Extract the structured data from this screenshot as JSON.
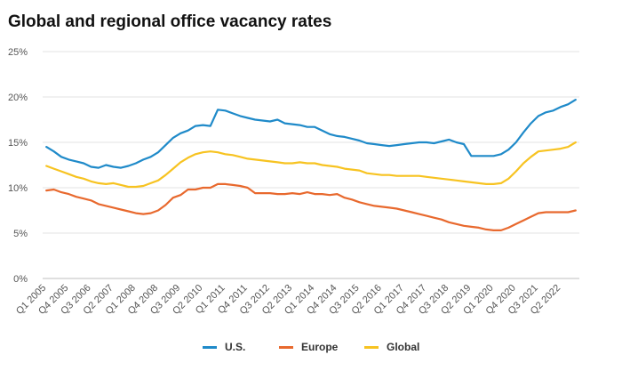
{
  "chart_data": {
    "type": "line",
    "title": "Global and regional office vacancy rates",
    "xlabel": "",
    "ylabel": "",
    "ylim": [
      0,
      25
    ],
    "yticks": [
      "0%",
      "5%",
      "10%",
      "15%",
      "20%",
      "25%"
    ],
    "grid": true,
    "legend_position": "bottom",
    "x": [
      "Q1 2005",
      "Q2 2005",
      "Q3 2005",
      "Q4 2005",
      "Q1 2006",
      "Q2 2006",
      "Q3 2006",
      "Q4 2006",
      "Q1 2007",
      "Q2 2007",
      "Q3 2007",
      "Q4 2007",
      "Q1 2008",
      "Q2 2008",
      "Q3 2008",
      "Q4 2008",
      "Q1 2009",
      "Q2 2009",
      "Q3 2009",
      "Q4 2009",
      "Q1 2010",
      "Q2 2010",
      "Q3 2010",
      "Q4 2010",
      "Q1 2011",
      "Q2 2011",
      "Q3 2011",
      "Q4 2011",
      "Q1 2012",
      "Q2 2012",
      "Q3 2012",
      "Q4 2012",
      "Q1 2013",
      "Q2 2013",
      "Q3 2013",
      "Q4 2013",
      "Q1 2014",
      "Q2 2014",
      "Q3 2014",
      "Q4 2014",
      "Q1 2015",
      "Q2 2015",
      "Q3 2015",
      "Q4 2015",
      "Q1 2016",
      "Q2 2016",
      "Q3 2016",
      "Q4 2016",
      "Q1 2017",
      "Q2 2017",
      "Q3 2017",
      "Q4 2017",
      "Q1 2018",
      "Q2 2018",
      "Q3 2018",
      "Q4 2018",
      "Q1 2019",
      "Q2 2019",
      "Q3 2019",
      "Q4 2019",
      "Q1 2020",
      "Q2 2020",
      "Q3 2020",
      "Q4 2020",
      "Q1 2021",
      "Q2 2021",
      "Q3 2021",
      "Q4 2021",
      "Q1 2022",
      "Q2 2022",
      "Q3 2022",
      "Q4 2022"
    ],
    "xtick_labels": [
      "Q1 2005",
      "Q4 2005",
      "Q3 2006",
      "Q2 2007",
      "Q1 2008",
      "Q4 2008",
      "Q3 2009",
      "Q2 2010",
      "Q1 2011",
      "Q4 2011",
      "Q3 2012",
      "Q2 2013",
      "Q1 2014",
      "Q4 2014",
      "Q3 2015",
      "Q2 2016",
      "Q1 2017",
      "Q4 2017",
      "Q3 2018",
      "Q2 2019",
      "Q1 2020",
      "Q4 2020",
      "Q3 2021",
      "Q2 2022"
    ],
    "series": [
      {
        "name": "U.S.",
        "color": "#1f8ac9",
        "values": [
          14.5,
          14.0,
          13.4,
          13.1,
          12.9,
          12.7,
          12.3,
          12.2,
          12.5,
          12.3,
          12.2,
          12.4,
          12.7,
          13.1,
          13.4,
          13.9,
          14.7,
          15.5,
          16.0,
          16.3,
          16.8,
          16.9,
          16.8,
          18.6,
          18.5,
          18.2,
          17.9,
          17.7,
          17.5,
          17.4,
          17.3,
          17.5,
          17.1,
          17.0,
          16.9,
          16.7,
          16.7,
          16.3,
          15.9,
          15.7,
          15.6,
          15.4,
          15.2,
          14.9,
          14.8,
          14.7,
          14.6,
          14.7,
          14.8,
          14.9,
          15.0,
          15.0,
          14.9,
          15.1,
          15.3,
          15.0,
          14.8,
          13.5,
          13.5,
          13.5,
          13.5,
          13.7,
          14.2,
          15.0,
          16.1,
          17.1,
          17.9,
          18.3,
          18.5,
          18.9,
          19.2,
          19.7
        ]
      },
      {
        "name": "Europe",
        "color": "#e8692e",
        "values": [
          9.7,
          9.8,
          9.5,
          9.3,
          9.0,
          8.8,
          8.6,
          8.2,
          8.0,
          7.8,
          7.6,
          7.4,
          7.2,
          7.1,
          7.2,
          7.5,
          8.1,
          8.9,
          9.2,
          9.8,
          9.8,
          10.0,
          10.0,
          10.4,
          10.4,
          10.3,
          10.2,
          10.0,
          9.4,
          9.4,
          9.4,
          9.3,
          9.3,
          9.4,
          9.3,
          9.5,
          9.3,
          9.3,
          9.2,
          9.3,
          8.9,
          8.7,
          8.4,
          8.2,
          8.0,
          7.9,
          7.8,
          7.7,
          7.5,
          7.3,
          7.1,
          6.9,
          6.7,
          6.5,
          6.2,
          6.0,
          5.8,
          5.7,
          5.6,
          5.4,
          5.3,
          5.3,
          5.6,
          6.0,
          6.4,
          6.8,
          7.2,
          7.3,
          7.3,
          7.3,
          7.3,
          7.5
        ]
      },
      {
        "name": "Global",
        "color": "#f7c321",
        "values": [
          12.4,
          12.1,
          11.8,
          11.5,
          11.2,
          11.0,
          10.7,
          10.5,
          10.4,
          10.5,
          10.3,
          10.1,
          10.1,
          10.2,
          10.5,
          10.8,
          11.4,
          12.1,
          12.8,
          13.3,
          13.7,
          13.9,
          14.0,
          13.9,
          13.7,
          13.6,
          13.4,
          13.2,
          13.1,
          13.0,
          12.9,
          12.8,
          12.7,
          12.7,
          12.8,
          12.7,
          12.7,
          12.5,
          12.4,
          12.3,
          12.1,
          12.0,
          11.9,
          11.6,
          11.5,
          11.4,
          11.4,
          11.3,
          11.3,
          11.3,
          11.3,
          11.2,
          11.1,
          11.0,
          10.9,
          10.8,
          10.7,
          10.6,
          10.5,
          10.4,
          10.4,
          10.5,
          11.0,
          11.8,
          12.7,
          13.4,
          14.0,
          14.1,
          14.2,
          14.3,
          14.5,
          15.0
        ]
      }
    ]
  }
}
